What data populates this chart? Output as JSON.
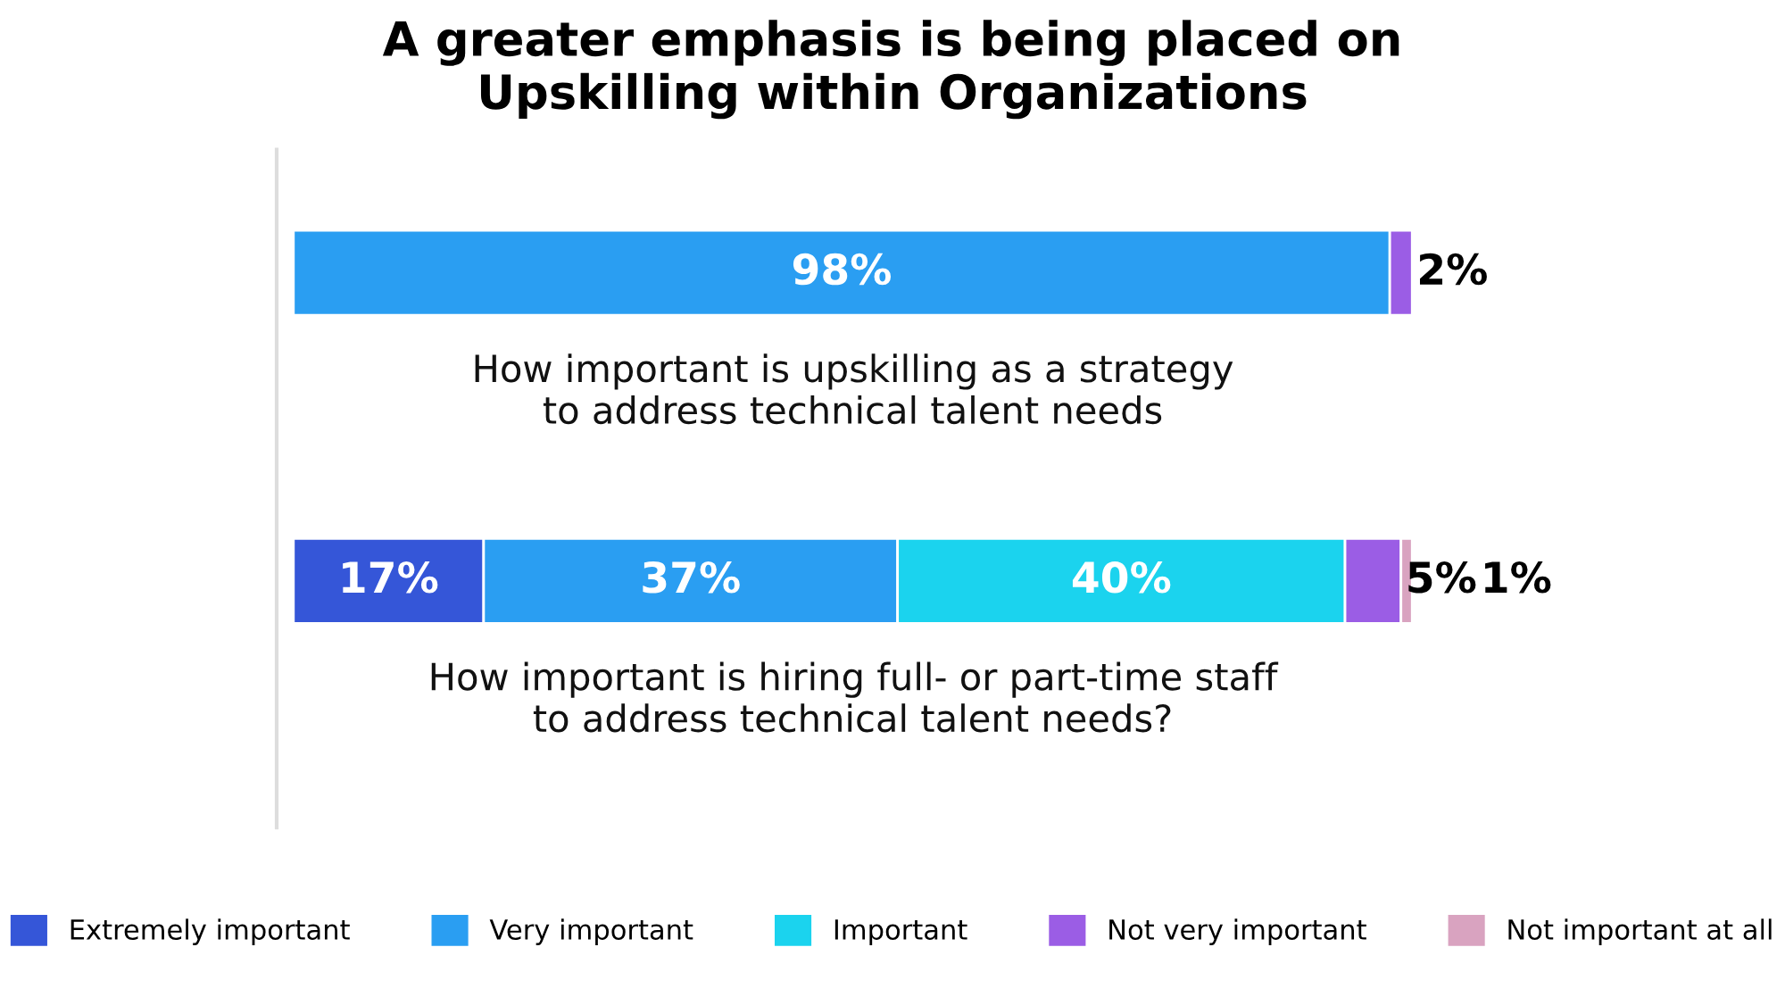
{
  "chart_data": {
    "type": "bar",
    "orientation": "horizontal",
    "stacked": true,
    "title": "A greater emphasis is being placed on\nUpskilling within Organizations",
    "categories": [
      "How important is upskilling as a strategy\nto address technical talent needs",
      "How important is hiring full- or part-time staff\nto address technical talent needs?"
    ],
    "series": [
      {
        "name": "Extremely important",
        "color": "#3556d8",
        "colors": [
          "#2a9ef2",
          "#3556d8"
        ],
        "values": [
          98,
          17
        ],
        "value_labels": [
          "98%",
          "17%"
        ]
      },
      {
        "name": "Very important",
        "color": "#2a9ef2",
        "values": [
          null,
          37
        ],
        "value_labels": [
          null,
          "37%"
        ]
      },
      {
        "name": "Important",
        "color": "#1bd3ee",
        "values": [
          null,
          40
        ],
        "value_labels": [
          null,
          "40%"
        ]
      },
      {
        "name": "Not very important",
        "color": "#9b5de5",
        "values": [
          2,
          5
        ],
        "value_labels": [
          "2%",
          "5%"
        ]
      },
      {
        "name": "Not important at all",
        "color": "#d9a3c0",
        "values": [
          null,
          1
        ],
        "value_labels": [
          null,
          "1%"
        ]
      }
    ],
    "legend": "bottom"
  }
}
